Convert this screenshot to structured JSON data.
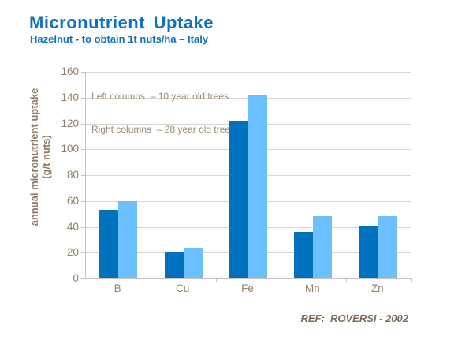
{
  "header": {
    "title": "Micronutrient Uptake",
    "subtitle": "Hazelnut - to obtain 1t nuts/ha – Italy"
  },
  "chart_data": {
    "type": "bar",
    "title": "Micronutrient Uptake",
    "subtitle": "Hazelnut - to obtain 1t nuts/ha – Italy",
    "categories": [
      "B",
      "Cu",
      "Fe",
      "Mn",
      "Zn"
    ],
    "series": [
      {
        "name": "10 year old trees",
        "position": "left columns",
        "color": "#0072C0",
        "values": [
          53,
          21,
          122,
          36,
          41
        ]
      },
      {
        "name": "28 year old trees",
        "position": "right columns",
        "color": "#6CC0FF",
        "values": [
          60,
          24,
          142,
          48,
          48
        ]
      }
    ],
    "xlabel": "",
    "ylabel_line1": "annual micronutrient uptake",
    "ylabel_line2": "(g/t nuts)",
    "ylim": [
      0,
      160
    ],
    "yticks": [
      0,
      20,
      40,
      60,
      80,
      100,
      120,
      140,
      160
    ],
    "grid": true,
    "legend": {
      "position": "top-left-inside",
      "lines": [
        "Left columns  – 10 year old trees",
        "Right columns  – 28 year old trees"
      ]
    }
  },
  "footer": {
    "reference": "REF:  ROVERSI - 2002"
  },
  "colors": {
    "title_blue": "#1072BE",
    "bar_dark": "#0072C0",
    "bar_light": "#6CC0FF",
    "gridline": "#D9D6CD",
    "axis_line": "#C6C3BA",
    "tick_text": "#8F8069",
    "legend_text": "#9A8B79",
    "ref_text": "#7E6B57"
  }
}
